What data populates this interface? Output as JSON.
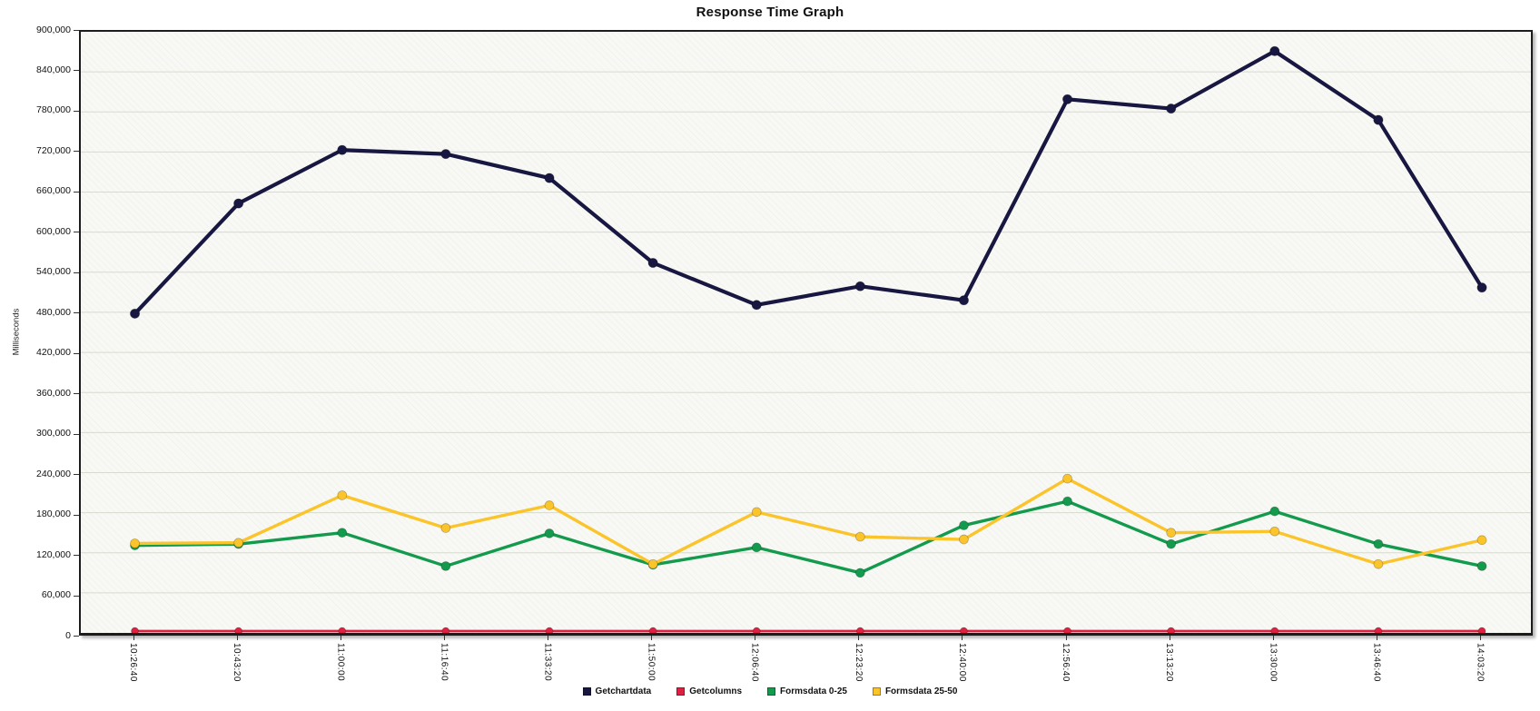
{
  "title": "Response Time Graph",
  "y_axis": {
    "label": "Milliseconds"
  },
  "colors": {
    "plot_background": "#f8f8f5",
    "gridline": "#d6dbce",
    "frame": "#1c1c1c",
    "series_getchartdata": "#171741",
    "series_getcolumns": "#dd2140",
    "series_formsdata_0_25": "#149a4c",
    "series_formsdata_25_50": "#fbc42a"
  },
  "chart_data": {
    "type": "line",
    "title": "Response Time Graph",
    "xlabel": "",
    "ylabel": "Milliseconds",
    "ylim": [
      0,
      900000
    ],
    "ytick_step": 60000,
    "grid": true,
    "legend_position": "bottom",
    "categories": [
      "10:26:40",
      "10:43:20",
      "11:00:00",
      "11:16:40",
      "11:33:20",
      "11:50:00",
      "12:06:40",
      "12:23:20",
      "12:40:00",
      "12:56:40",
      "13:13:20",
      "13:30:00",
      "13:46:40",
      "14:03:20"
    ],
    "series": [
      {
        "name": "Getchartdata",
        "color": "#171741",
        "values": [
          478000,
          643000,
          723000,
          717000,
          681000,
          554000,
          491000,
          519000,
          498000,
          799000,
          785000,
          871000,
          768000,
          517000
        ]
      },
      {
        "name": "Getcolumns",
        "color": "#dd2140",
        "values": [
          0,
          0,
          0,
          0,
          0,
          0,
          0,
          0,
          0,
          0,
          0,
          0,
          0,
          0
        ]
      },
      {
        "name": "Formsdata 0-25",
        "color": "#149a4c",
        "values": [
          131000,
          133000,
          150000,
          100000,
          149000,
          102000,
          128000,
          90000,
          161000,
          197000,
          133000,
          182000,
          133000,
          100000
        ]
      },
      {
        "name": "Formsdata 25-50",
        "color": "#fbc42a",
        "values": [
          134000,
          135000,
          206000,
          157000,
          191000,
          103000,
          181000,
          144000,
          140000,
          231000,
          150000,
          152000,
          103000,
          139000
        ]
      }
    ]
  }
}
